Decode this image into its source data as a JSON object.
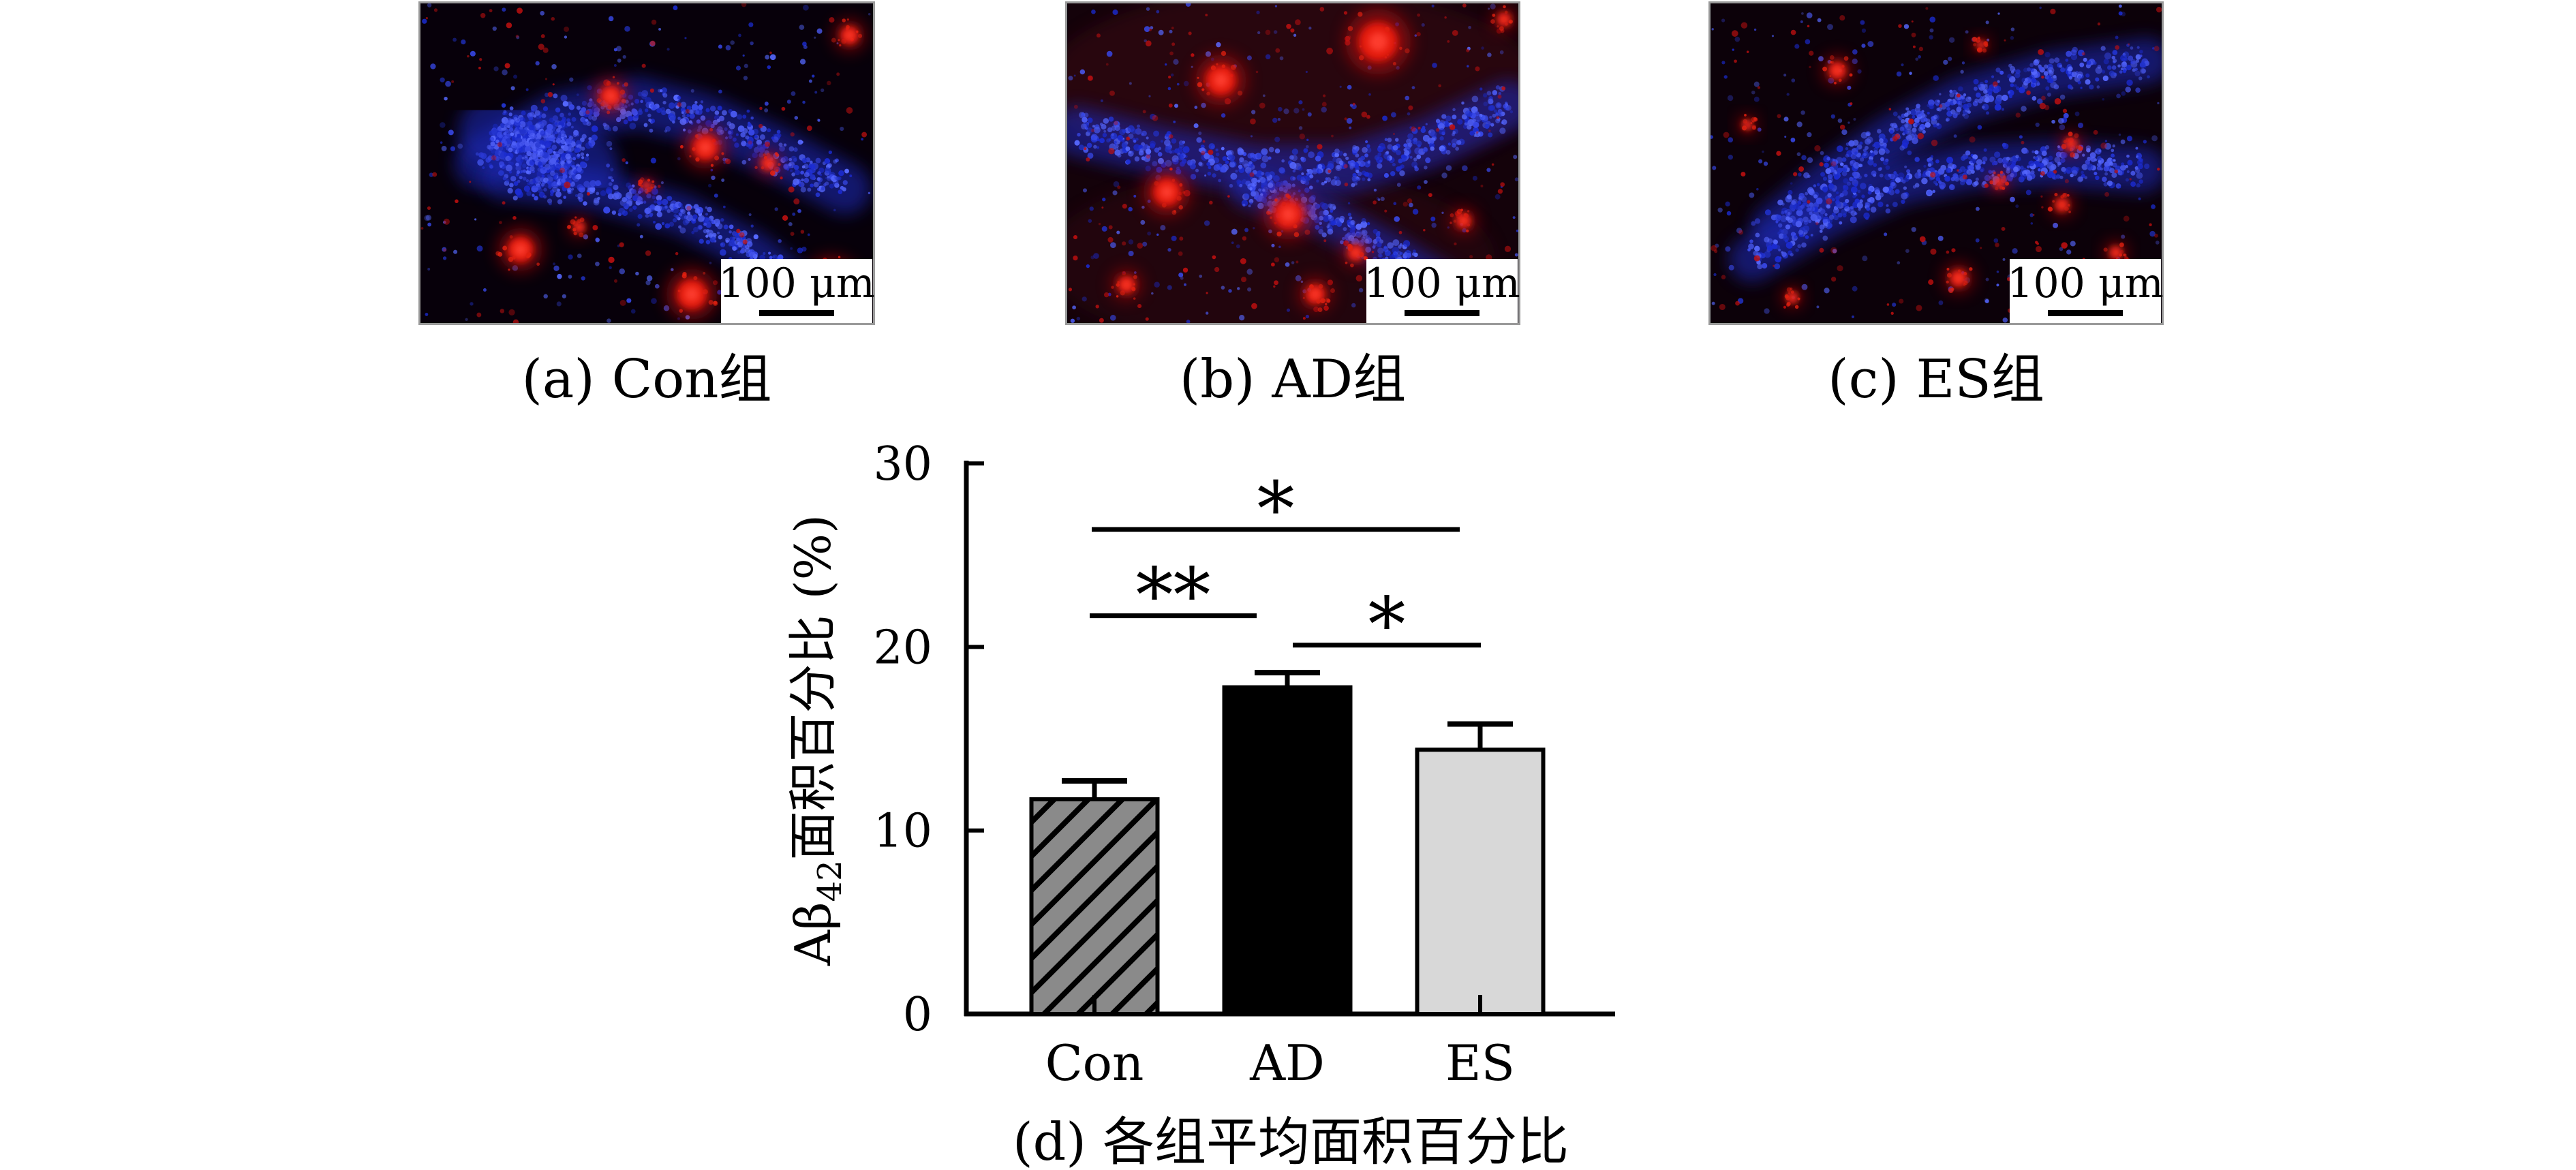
{
  "figure": {
    "panels": [
      {
        "id": "a",
        "caption": "(a) Con组",
        "scale_bar_label": "100 μm"
      },
      {
        "id": "b",
        "caption": "(b) AD组",
        "scale_bar_label": "100 μm"
      },
      {
        "id": "c",
        "caption": "(c) ES组",
        "scale_bar_label": "100 μm"
      }
    ]
  },
  "chart_data": {
    "type": "bar",
    "categories": [
      "Con",
      "AD",
      "ES"
    ],
    "values": [
      11.7,
      17.8,
      14.4
    ],
    "errors": [
      1.0,
      0.8,
      1.4
    ],
    "title": "(d) 各组平均面积百分比",
    "xlabel": "",
    "ylabel": "Aβ42面积百分比 (%)",
    "ylabel_parts": {
      "main": "Aβ",
      "sub": "42",
      "rest": "面积百分比 (%)"
    },
    "yticks": [
      0,
      10,
      20,
      30
    ],
    "ylim": [
      0,
      30
    ],
    "grid": false,
    "legend": "none",
    "bar_styles": [
      {
        "category": "Con",
        "fill": "#8a8a8a",
        "hatch": "diagonal-forward"
      },
      {
        "category": "AD",
        "fill": "#000000",
        "hatch": "none"
      },
      {
        "category": "ES",
        "fill": "#d8d8d8",
        "hatch": "none"
      }
    ],
    "significance": [
      {
        "between": [
          "Con",
          "AD"
        ],
        "label": "**",
        "height": 21.7
      },
      {
        "between": [
          "Con",
          "ES"
        ],
        "label": "*",
        "height": 26.4
      },
      {
        "between": [
          "AD",
          "ES"
        ],
        "label": "*",
        "height": 20.1
      }
    ]
  },
  "colors": {
    "text": "#000000",
    "axis": "#000000",
    "bar_outline": "#000000",
    "con_bar_fill": "#8a8a8a",
    "ad_bar_fill": "#000000",
    "es_bar_fill": "#d8d8d8",
    "micrograph_bg": "#070008",
    "micrograph_blue": "#2a3ae0",
    "micrograph_red": "#e01212",
    "scale_box_bg": "#ffffff"
  }
}
